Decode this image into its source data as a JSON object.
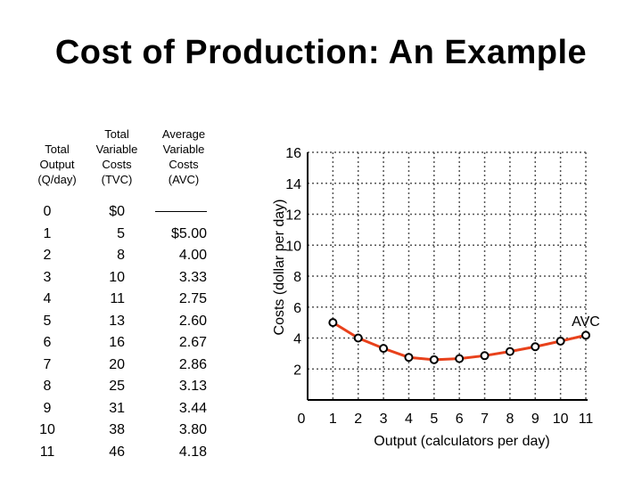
{
  "title": "Cost of Production: An Example",
  "table": {
    "headers": [
      "Total\nOutput\n(Q/day)",
      "Total\nVariable\nCosts\n(TVC)",
      "Average\nVariable\nCosts\n(AVC)"
    ],
    "rows": [
      {
        "q": "0",
        "tvc": "$0",
        "avc": ""
      },
      {
        "q": "1",
        "tvc": "5",
        "avc": "$5.00"
      },
      {
        "q": "2",
        "tvc": "8",
        "avc": "4.00"
      },
      {
        "q": "3",
        "tvc": "10",
        "avc": "3.33"
      },
      {
        "q": "4",
        "tvc": "11",
        "avc": "2.75"
      },
      {
        "q": "5",
        "tvc": "13",
        "avc": "2.60"
      },
      {
        "q": "6",
        "tvc": "16",
        "avc": "2.67"
      },
      {
        "q": "7",
        "tvc": "20",
        "avc": "2.86"
      },
      {
        "q": "8",
        "tvc": "25",
        "avc": "3.13"
      },
      {
        "q": "9",
        "tvc": "31",
        "avc": "3.44"
      },
      {
        "q": "10",
        "tvc": "38",
        "avc": "3.80"
      },
      {
        "q": "11",
        "tvc": "46",
        "avc": "4.18"
      }
    ]
  },
  "chart_data": {
    "type": "line",
    "xlabel": "Output (calculators per day)",
    "ylabel": "Costs (dollar per day)",
    "xlim": [
      0,
      11
    ],
    "ylim": [
      0,
      16
    ],
    "x_ticks": [
      "0",
      "1",
      "2",
      "3",
      "4",
      "5",
      "6",
      "7",
      "8",
      "9",
      "10",
      "11"
    ],
    "y_ticks": [
      "2",
      "4",
      "6",
      "8",
      "10",
      "12",
      "14",
      "16"
    ],
    "grid": true,
    "series": [
      {
        "name": "AVC",
        "x": [
          1,
          2,
          3,
          4,
          5,
          6,
          7,
          8,
          9,
          10,
          11
        ],
        "y": [
          5.0,
          4.0,
          3.33,
          2.75,
          2.6,
          2.67,
          2.86,
          3.13,
          3.44,
          3.8,
          4.18
        ]
      }
    ],
    "colors": {
      "line": "#e8411b",
      "marker_fill": "#ffffff",
      "marker_stroke": "#000000",
      "grid": "#555555"
    }
  }
}
